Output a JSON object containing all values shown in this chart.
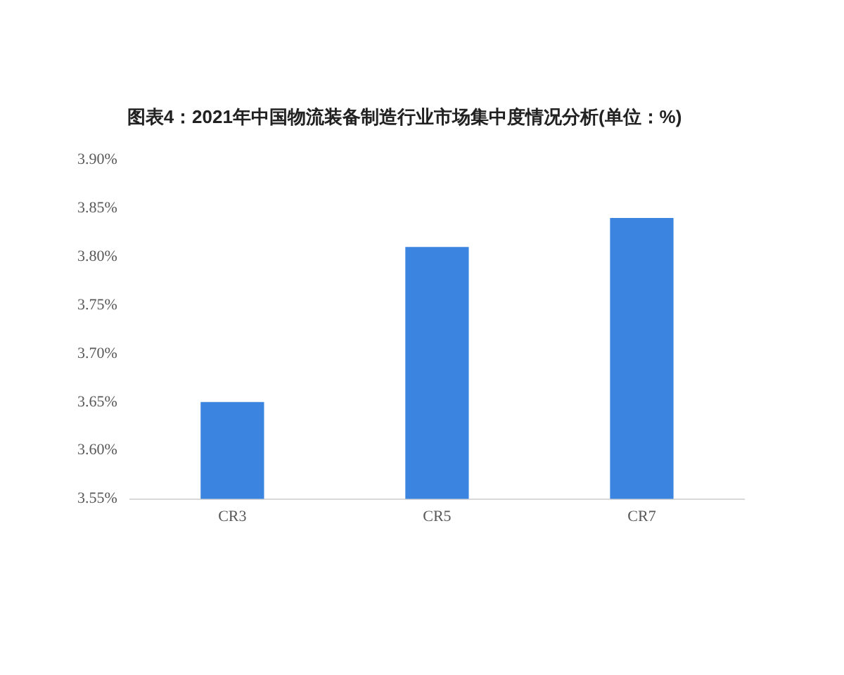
{
  "chart_data": {
    "type": "bar",
    "title": "图表4：2021年中国物流装备制造行业市场集中度情况分析(单位：%)",
    "categories": [
      "CR3",
      "CR5",
      "CR7"
    ],
    "series": [
      {
        "color": "#3b84e0",
        "values": [
          3.65,
          3.81,
          3.84
        ]
      }
    ],
    "ylim": [
      3.55,
      3.9
    ],
    "yticks": [
      {
        "value": 3.55,
        "label": "3.55%"
      },
      {
        "value": 3.6,
        "label": "3.60%"
      },
      {
        "value": 3.65,
        "label": "3.65%"
      },
      {
        "value": 3.7,
        "label": "3.70%"
      },
      {
        "value": 3.75,
        "label": "3.75%"
      },
      {
        "value": 3.8,
        "label": "3.80%"
      },
      {
        "value": 3.85,
        "label": "3.85%"
      },
      {
        "value": 3.9,
        "label": "3.90%"
      }
    ],
    "grid": false,
    "legend": false
  }
}
